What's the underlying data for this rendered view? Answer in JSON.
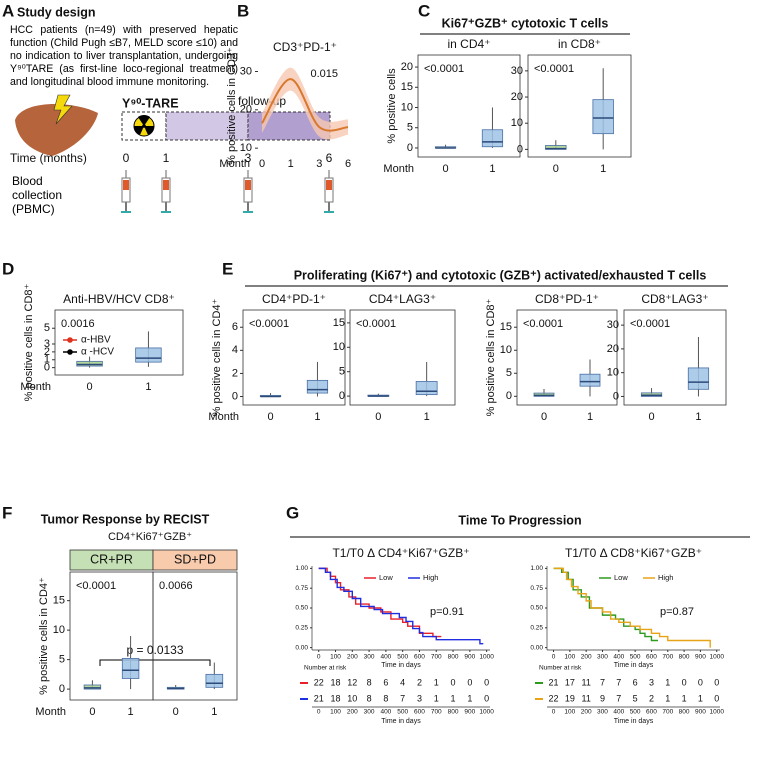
{
  "panels": [
    "A",
    "B",
    "C",
    "D",
    "E",
    "F",
    "G"
  ],
  "study_design": {
    "title": "Study design",
    "description": "HCC patients (n=49) with preserved hepatic function (Child Pugh ≤B7, MELD score ≤10) and no indication to liver transplantation, undergoing Y⁹⁰TARE (as first-line loco-regional treatment) and longitudinal blood immune monitoring.",
    "treatment": "Y⁹⁰-TARE",
    "follow_up": "follow-up",
    "time_label": "Time (months)",
    "times": [
      0,
      1,
      3,
      6
    ],
    "sampling": "Blood collection (PBMC)"
  },
  "headers": {
    "C": "Ki67⁺GZB⁺ cytotoxic T cells",
    "E": "Proliferating (Ki67⁺) and cytotoxic (GZB⁺) activated/exhausted T cells",
    "F_title": "Tumor Response by RECIST",
    "F_subtitle": "CD4⁺Ki67⁺GZB⁺",
    "F_comparison": "p = 0.0133",
    "G": "Time To Progression"
  },
  "chart_data": [
    {
      "type": "line",
      "title": "CD3⁺PD-1⁺",
      "y_label": "% positive cells in CD3⁺",
      "x_label": "Month",
      "annotation": "0.015",
      "categories": [
        0,
        1,
        3,
        6
      ],
      "ylim": [
        9,
        33
      ],
      "yticks": [
        10,
        20,
        30
      ],
      "series": [
        {
          "color": "#d9782d",
          "band_color": "#f6c8b2",
          "values": [
            16.5,
            28,
            15.5,
            15.5
          ],
          "lower": [
            14,
            25,
            13,
            13.5
          ],
          "upper": [
            19,
            31,
            18,
            17.5
          ]
        }
      ]
    },
    {
      "type": "box",
      "title": "in CD4⁺",
      "y_label": "% positive cells",
      "x_label": "Month",
      "annotation": "<0.0001",
      "categories": [
        0,
        1
      ],
      "ylim": [
        -1,
        21
      ],
      "yticks": [
        0,
        5,
        10,
        15,
        20
      ],
      "boxes": [
        {
          "min": 0,
          "q1": 0,
          "median": 0,
          "q3": 0.3,
          "max": 0.8,
          "color": "#a8d08d"
        },
        {
          "min": 0,
          "q1": 0.3,
          "median": 1.5,
          "q3": 4.5,
          "max": 10,
          "color": "#9dc3e6"
        }
      ]
    },
    {
      "type": "box",
      "title": "in CD8⁺",
      "annotation": "<0.0001",
      "categories": [
        0,
        1
      ],
      "ylim": [
        -1,
        33
      ],
      "yticks": [
        0,
        10,
        20,
        30
      ],
      "boxes": [
        {
          "min": 0,
          "q1": 0,
          "median": 0.3,
          "q3": 1.5,
          "max": 3.5,
          "color": "#a8d08d"
        },
        {
          "min": 0,
          "q1": 6,
          "median": 12,
          "q3": 19,
          "max": 31,
          "color": "#9dc3e6"
        }
      ]
    },
    {
      "type": "box",
      "title": "Anti-HBV/HCV CD8⁺",
      "y_label": "% positive cells in CD8⁺",
      "x_label": "Month",
      "annotation": "0.0016",
      "categories": [
        0,
        1
      ],
      "ylim": [
        -0.3,
        6.3
      ],
      "yticks": [
        0,
        1,
        2,
        3,
        5
      ],
      "series": [
        {
          "name": "α-HBV",
          "color": "#e0301e"
        },
        {
          "name": "α -HCV",
          "color": "#000000"
        }
      ],
      "boxes": [
        {
          "min": 0,
          "q1": 0.2,
          "median": 0.4,
          "q3": 0.8,
          "max": 1.4,
          "color": "#a8d08d"
        },
        {
          "min": 0.1,
          "q1": 0.7,
          "median": 1.2,
          "q3": 2.5,
          "max": 4.6,
          "color": "#9dc3e6"
        }
      ]
    },
    {
      "type": "box",
      "title": "CD4⁺PD-1⁺",
      "y_label": "% positive cells in CD4⁺",
      "x_label": "Month",
      "annotation": "<0.0001",
      "categories": [
        0,
        1
      ],
      "ylim": [
        -0.3,
        6.8
      ],
      "yticks": [
        0,
        2,
        4,
        6
      ],
      "boxes": [
        {
          "min": 0,
          "q1": 0,
          "median": 0,
          "q3": 0.1,
          "max": 0.3,
          "color": "#a8d08d"
        },
        {
          "min": 0,
          "q1": 0.3,
          "median": 0.6,
          "q3": 1.4,
          "max": 3,
          "color": "#9dc3e6"
        }
      ]
    },
    {
      "type": "box",
      "title": "CD4⁺LAG3⁺",
      "annotation": "<0.0001",
      "categories": [
        0,
        1
      ],
      "ylim": [
        -0.8,
        16
      ],
      "yticks": [
        0,
        5,
        10,
        15
      ],
      "boxes": [
        {
          "min": 0,
          "q1": 0,
          "median": 0,
          "q3": 0.2,
          "max": 0.5,
          "color": "#a8d08d"
        },
        {
          "min": 0,
          "q1": 0.3,
          "median": 1,
          "q3": 3,
          "max": 7,
          "color": "#9dc3e6"
        }
      ]
    },
    {
      "type": "box",
      "title": "CD8⁺PD-1⁺",
      "y_label": "% positive cells in CD8⁺",
      "annotation": "<0.0001",
      "categories": [
        0,
        1
      ],
      "ylim": [
        -0.8,
        17
      ],
      "yticks": [
        0,
        5,
        10,
        15
      ],
      "boxes": [
        {
          "min": 0,
          "q1": 0,
          "median": 0.2,
          "q3": 0.7,
          "max": 1.6,
          "color": "#a8d08d"
        },
        {
          "min": 0,
          "q1": 2.2,
          "median": 3.2,
          "q3": 4.8,
          "max": 8,
          "color": "#9dc3e6"
        }
      ]
    },
    {
      "type": "box",
      "title": "CD8⁺LAG3⁺",
      "annotation": "<0.0001",
      "categories": [
        0,
        1
      ],
      "ylim": [
        -1.5,
        33
      ],
      "yticks": [
        0,
        10,
        20,
        30
      ],
      "boxes": [
        {
          "min": 0,
          "q1": 0,
          "median": 0.5,
          "q3": 1.5,
          "max": 3.5,
          "color": "#a8d08d"
        },
        {
          "min": 0,
          "q1": 3,
          "median": 6,
          "q3": 12,
          "max": 25,
          "color": "#9dc3e6"
        }
      ]
    },
    {
      "type": "box",
      "title": "CR+PR",
      "title_color": "#c5e0b4",
      "y_label": "% positive cells in CD4⁺",
      "x_label": "Month",
      "annotation": "<0.0001",
      "categories": [
        0,
        1
      ],
      "ylim": [
        -1,
        18.5
      ],
      "yticks": [
        0,
        5,
        10,
        15
      ],
      "boxes": [
        {
          "min": 0,
          "q1": 0,
          "median": 0.2,
          "q3": 0.7,
          "max": 1.5,
          "color": "#a8d08d"
        },
        {
          "min": 0,
          "q1": 1.8,
          "median": 3.2,
          "q3": 5.2,
          "max": 9,
          "color": "#9dc3e6"
        }
      ]
    },
    {
      "type": "box",
      "title": "SD+PD",
      "title_color": "#f8cbad",
      "annotation": "0.0066",
      "categories": [
        0,
        1
      ],
      "ylim": [
        -1,
        18.5
      ],
      "boxes": [
        {
          "min": 0,
          "q1": 0,
          "median": 0.1,
          "q3": 0.3,
          "max": 0.7,
          "color": "#a8d08d"
        },
        {
          "min": 0,
          "q1": 0.3,
          "median": 1,
          "q3": 2.5,
          "max": 4.5,
          "color": "#9dc3e6"
        }
      ]
    },
    {
      "type": "km",
      "title": "T1/T0 Δ CD4⁺Ki67⁺GZB⁺",
      "x_label": "Time in days",
      "annotation": "p=0.91",
      "xlim": [
        -40,
        1020
      ],
      "xticks": [
        0,
        100,
        200,
        300,
        400,
        500,
        600,
        700,
        800,
        900,
        1000
      ],
      "ylim": [
        -0.03,
        1.03
      ],
      "yticks": [
        {
          "value": 0,
          "label": "0.00"
        },
        0.25,
        {
          "value": 0.5,
          "label": "0.50"
        },
        0.75,
        {
          "value": 1,
          "label": "1.00"
        }
      ],
      "series": [
        {
          "name": "Low",
          "color": "#e8202a",
          "x": [
            0,
            50,
            70,
            100,
            130,
            180,
            220,
            300,
            370,
            430,
            500,
            530,
            600,
            680,
            730
          ],
          "values": [
            1,
            0.95,
            0.9,
            0.82,
            0.73,
            0.64,
            0.55,
            0.5,
            0.45,
            0.36,
            0.32,
            0.27,
            0.18,
            0.14,
            0.14
          ]
        },
        {
          "name": "High",
          "color": "#1f2ee0",
          "x": [
            0,
            40,
            70,
            110,
            150,
            200,
            250,
            330,
            380,
            480,
            520,
            560,
            600,
            620,
            700,
            960,
            980
          ],
          "values": [
            1,
            0.95,
            0.86,
            0.76,
            0.71,
            0.62,
            0.52,
            0.48,
            0.43,
            0.38,
            0.33,
            0.24,
            0.19,
            0.14,
            0.1,
            0.05,
            0.05
          ]
        }
      ],
      "risk_table": {
        "title": "Number at risk",
        "rows": [
          [
            22,
            18,
            12,
            8,
            6,
            4,
            2,
            1,
            0,
            0,
            0
          ],
          [
            21,
            18,
            10,
            8,
            8,
            7,
            3,
            1,
            1,
            1,
            0
          ]
        ]
      }
    },
    {
      "type": "km",
      "title": "T1/T0 Δ CD8⁺Ki67⁺GZB⁺",
      "x_label": "Time in days",
      "annotation": "p=0.87",
      "xlim": [
        -40,
        1020
      ],
      "xticks": [
        0,
        100,
        200,
        300,
        400,
        500,
        600,
        700,
        800,
        900,
        1000
      ],
      "ylim": [
        -0.03,
        1.03
      ],
      "yticks": [
        {
          "value": 0,
          "label": "0.00"
        },
        0.25,
        {
          "value": 0.5,
          "label": "0.50"
        },
        0.75,
        {
          "value": 1,
          "label": "1.00"
        }
      ],
      "series": [
        {
          "name": "Low",
          "color": "#2e9a1e",
          "x": [
            0,
            50,
            90,
            120,
            170,
            220,
            300,
            380,
            430,
            500,
            530,
            560,
            600,
            640
          ],
          "values": [
            1,
            0.95,
            0.86,
            0.73,
            0.64,
            0.5,
            0.41,
            0.36,
            0.27,
            0.23,
            0.18,
            0.14,
            0.09,
            0.09
          ]
        },
        {
          "name": "High",
          "color": "#e8a317",
          "x": [
            0,
            60,
            80,
            110,
            150,
            200,
            230,
            300,
            350,
            400,
            470,
            530,
            600,
            650,
            700,
            950,
            960
          ],
          "values": [
            1,
            0.95,
            0.86,
            0.77,
            0.68,
            0.59,
            0.5,
            0.45,
            0.36,
            0.32,
            0.27,
            0.23,
            0.18,
            0.14,
            0.09,
            0.09,
            0
          ]
        }
      ],
      "risk_table": {
        "title": "Number at risk",
        "rows": [
          [
            21,
            17,
            11,
            7,
            7,
            6,
            3,
            1,
            0,
            0,
            0
          ],
          [
            22,
            19,
            11,
            9,
            7,
            5,
            2,
            1,
            1,
            1,
            0
          ]
        ]
      }
    }
  ]
}
